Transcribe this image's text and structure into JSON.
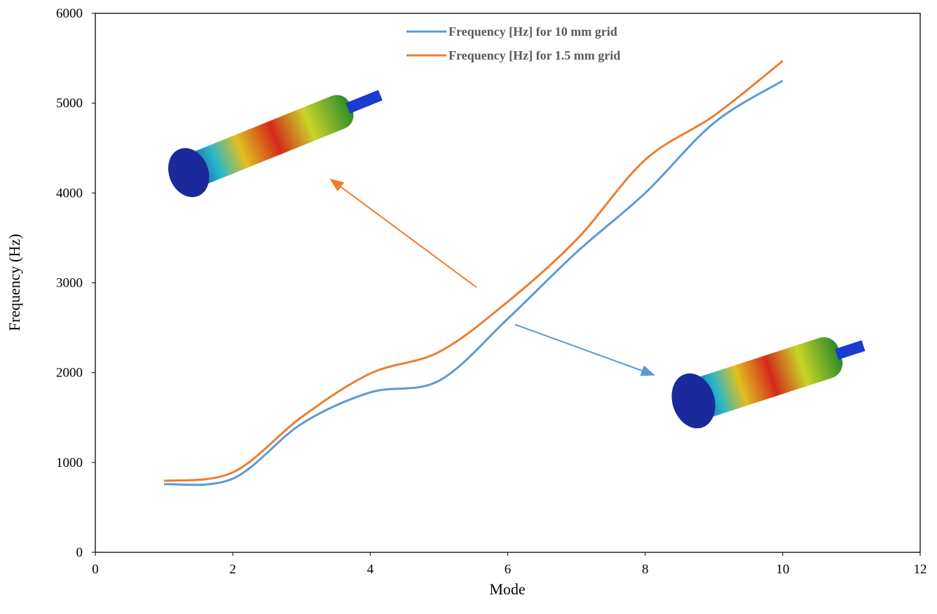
{
  "chart_data": {
    "type": "line",
    "x_label": "Mode",
    "y_label": "Frequency (Hz)",
    "x": [
      1,
      2,
      3,
      4,
      5,
      6,
      7,
      8,
      9,
      10
    ],
    "series": [
      {
        "name": "Frequency [Hz] for 10 mm grid",
        "color": "#5b9bd5",
        "values": [
          758,
          820,
          1430,
          1780,
          1910,
          2600,
          3340,
          4000,
          4780,
          5250
        ]
      },
      {
        "name": "Frequency [Hz] for 1.5 mm grid",
        "color": "#ed7d31",
        "values": [
          795,
          890,
          1505,
          1990,
          2230,
          2790,
          3480,
          4370,
          4860,
          5470
        ]
      }
    ],
    "xlim": [
      0,
      12
    ],
    "xticks": [
      0,
      2,
      4,
      6,
      8,
      10,
      12
    ],
    "ylim": [
      0,
      6000
    ],
    "yticks": [
      0,
      1000,
      2000,
      3000,
      4000,
      5000,
      6000
    ],
    "grid": false,
    "legend": "top"
  }
}
